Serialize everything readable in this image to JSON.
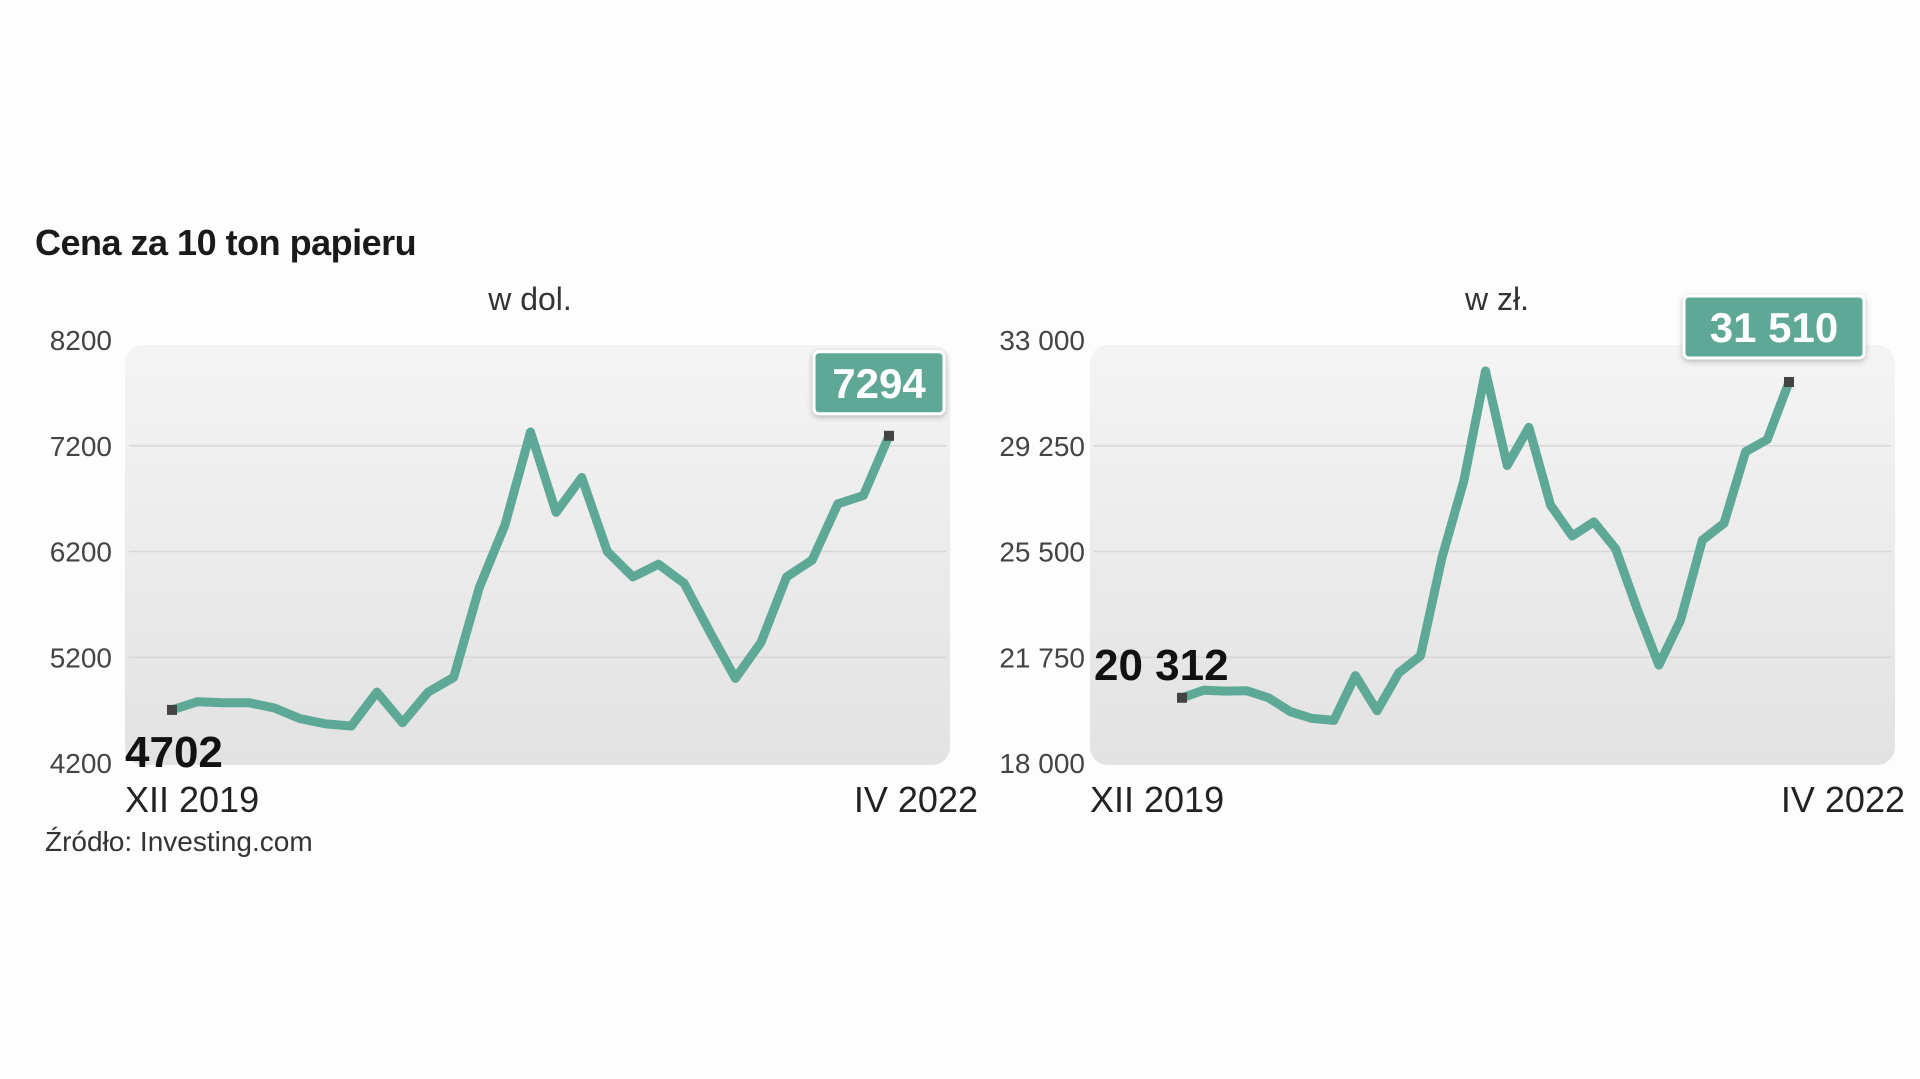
{
  "title": "Cena za 10 ton papieru",
  "source": "Źródło: Investing.com",
  "colors": {
    "line": "#5ea896",
    "callout": "#5ea896",
    "panel_top": "#f4f4f4",
    "panel_bottom": "#e2e2e2"
  },
  "chart_data": [
    {
      "type": "line",
      "title": "w dol.",
      "ylim": [
        4200,
        8200
      ],
      "yticks": [
        "8200",
        "7200",
        "6200",
        "5200",
        "4200"
      ],
      "ytick_values": [
        8200,
        7200,
        6200,
        5200,
        4200
      ],
      "xlabels": [
        "XII 2019",
        "IV 2022"
      ],
      "grid": true,
      "start_label": "4702",
      "end_label": "7294",
      "values": [
        4702,
        4780,
        4770,
        4770,
        4720,
        4620,
        4570,
        4550,
        4870,
        4580,
        4870,
        5010,
        5860,
        6450,
        7330,
        6570,
        6900,
        6200,
        5960,
        6080,
        5900,
        5440,
        5000,
        5340,
        5960,
        6120,
        6650,
        6730,
        7294
      ]
    },
    {
      "type": "line",
      "title": "w zł.",
      "ylim": [
        18000,
        33000
      ],
      "yticks": [
        "33 000",
        "29 250",
        "25 500",
        "21 750",
        "18 000"
      ],
      "ytick_values": [
        33000,
        29250,
        25500,
        21750,
        18000
      ],
      "xlabels": [
        "XII 2019",
        "IV 2022"
      ],
      "grid": true,
      "start_label": "20 312",
      "end_label": "31 510",
      "values": [
        20312,
        20580,
        20550,
        20560,
        20310,
        19820,
        19580,
        19510,
        21100,
        19850,
        21200,
        21800,
        25300,
        28000,
        31900,
        28550,
        29900,
        27150,
        26050,
        26550,
        25600,
        23450,
        21470,
        23070,
        25900,
        26500,
        29040,
        29470,
        31510
      ]
    }
  ]
}
